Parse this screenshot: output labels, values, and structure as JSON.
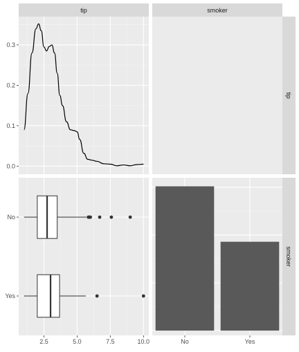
{
  "chart_data": [
    {
      "type": "line",
      "panel": "tip-density",
      "strip_top": "tip",
      "xlim": [
        0.6,
        10.4
      ],
      "ylim": [
        -0.02,
        0.37
      ],
      "y_ticks": [
        {
          "v": 0.0,
          "label": "0.0"
        },
        {
          "v": 0.1,
          "label": "0.1"
        },
        {
          "v": 0.2,
          "label": "0.2"
        },
        {
          "v": 0.3,
          "label": "0.3"
        }
      ],
      "x": [
        1.0,
        1.3,
        1.6,
        1.9,
        2.1,
        2.3,
        2.5,
        2.7,
        2.9,
        3.1,
        3.3,
        3.5,
        3.7,
        3.9,
        4.2,
        4.5,
        4.8,
        5.0,
        5.2,
        5.5,
        5.8,
        6.1,
        6.5,
        7.0,
        7.5,
        8.0,
        8.5,
        9.0,
        9.5,
        10.0
      ],
      "y": [
        0.09,
        0.18,
        0.28,
        0.34,
        0.352,
        0.335,
        0.295,
        0.285,
        0.296,
        0.3,
        0.28,
        0.23,
        0.175,
        0.15,
        0.11,
        0.09,
        0.088,
        0.085,
        0.066,
        0.032,
        0.017,
        0.015,
        0.012,
        0.006,
        0.005,
        0.001,
        0.003,
        0.001,
        0.004,
        0.005
      ]
    },
    {
      "type": "boxplot",
      "panel": "tip-by-smoker",
      "xlim": [
        0.6,
        10.4
      ],
      "x_ticks": [
        {
          "v": 2.5,
          "label": "2.5"
        },
        {
          "v": 5.0,
          "label": "5.0"
        },
        {
          "v": 7.5,
          "label": "7.5"
        },
        {
          "v": 10.0,
          "label": "10.0"
        }
      ],
      "categories": [
        "No",
        "Yes"
      ],
      "boxes": [
        {
          "category": "No",
          "whisker_low": 1.0,
          "q1": 2.0,
          "median": 2.74,
          "q3": 3.5,
          "whisker_high": 5.7,
          "outliers": [
            5.85,
            5.92,
            6.0,
            6.7,
            7.58,
            9.0
          ]
        },
        {
          "category": "Yes",
          "whisker_low": 1.0,
          "q1": 2.0,
          "median": 3.0,
          "q3": 3.68,
          "whisker_high": 5.65,
          "outliers": [
            6.5,
            10.0
          ]
        }
      ]
    },
    {
      "type": "bar",
      "panel": "smoker-count",
      "strip_top": "smoker",
      "strip_right_top": "tip",
      "strip_right_bottom": "smoker",
      "categories": [
        "No",
        "Yes"
      ],
      "values": [
        151,
        93
      ],
      "ylim": [
        -5,
        160
      ]
    }
  ]
}
